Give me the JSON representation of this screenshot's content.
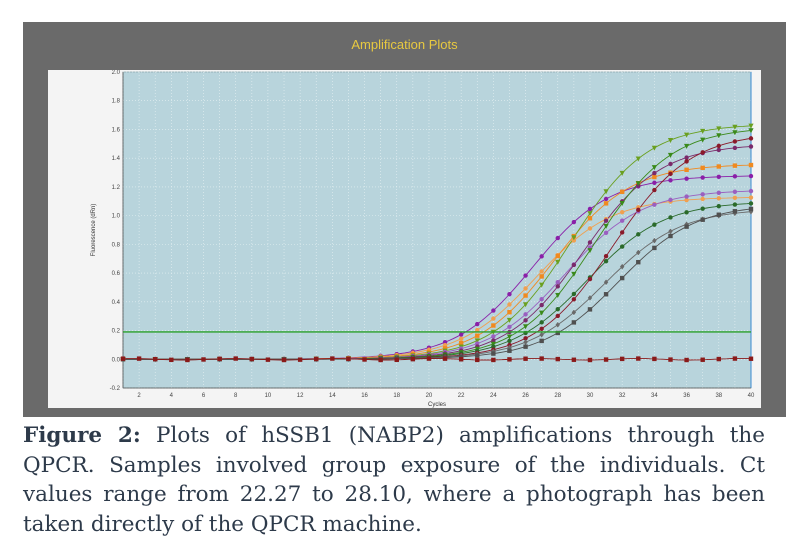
{
  "chart_data": {
    "type": "line",
    "title": "Amplification Plots",
    "xlabel": "Cycles",
    "ylabel": "Fluorescence (dRn)",
    "xlim": [
      1,
      40
    ],
    "ylim": [
      -0.2,
      2.0
    ],
    "x_ticks": [
      2,
      4,
      6,
      8,
      10,
      12,
      14,
      16,
      18,
      20,
      22,
      24,
      26,
      28,
      30,
      32,
      34,
      36,
      38,
      40
    ],
    "y_ticks": [
      -0.2,
      0.0,
      0.2,
      0.4,
      0.6,
      0.8,
      1.0,
      1.2,
      1.4,
      1.6,
      1.8,
      2.0
    ],
    "threshold": 0.19,
    "grid": true,
    "legend": "none",
    "series": [
      {
        "ct": 22.27,
        "plateau": 1.28,
        "color": "#8a1fa8",
        "marker": "circle"
      },
      {
        "ct": 22.8,
        "plateau": 1.13,
        "color": "#f0a050",
        "marker": "circle"
      },
      {
        "ct": 23.4,
        "plateau": 1.36,
        "color": "#f08a20",
        "marker": "square"
      },
      {
        "ct": 24.0,
        "plateau": 1.64,
        "color": "#6aa020",
        "marker": "triangle-down"
      },
      {
        "ct": 24.5,
        "plateau": 1.18,
        "color": "#9a5fc0",
        "marker": "circle"
      },
      {
        "ct": 25.0,
        "plateau": 1.5,
        "color": "#7a2a6a",
        "marker": "circle"
      },
      {
        "ct": 25.5,
        "plateau": 1.62,
        "color": "#3a8a1a",
        "marker": "triangle-down"
      },
      {
        "ct": 26.1,
        "plateau": 1.1,
        "color": "#2a6a2a",
        "marker": "circle"
      },
      {
        "ct": 26.7,
        "plateau": 1.58,
        "color": "#8a1a2a",
        "marker": "circle"
      },
      {
        "ct": 27.3,
        "plateau": 1.05,
        "color": "#6a6a6a",
        "marker": "diamond"
      },
      {
        "ct": 28.1,
        "plateau": 1.08,
        "color": "#505050",
        "marker": "square"
      },
      {
        "ct": null,
        "plateau": 0.0,
        "color": "#8a1a1a",
        "marker": "square"
      }
    ]
  },
  "caption": {
    "label": "Figure 2:",
    "text": " Plots of hSSB1 (NABP2) amplifications through the QPCR. Samples involved group exposure of the individuals. Ct values range from 22.27 to 28.10, where a photograph has been taken directly of the QPCR machine."
  }
}
